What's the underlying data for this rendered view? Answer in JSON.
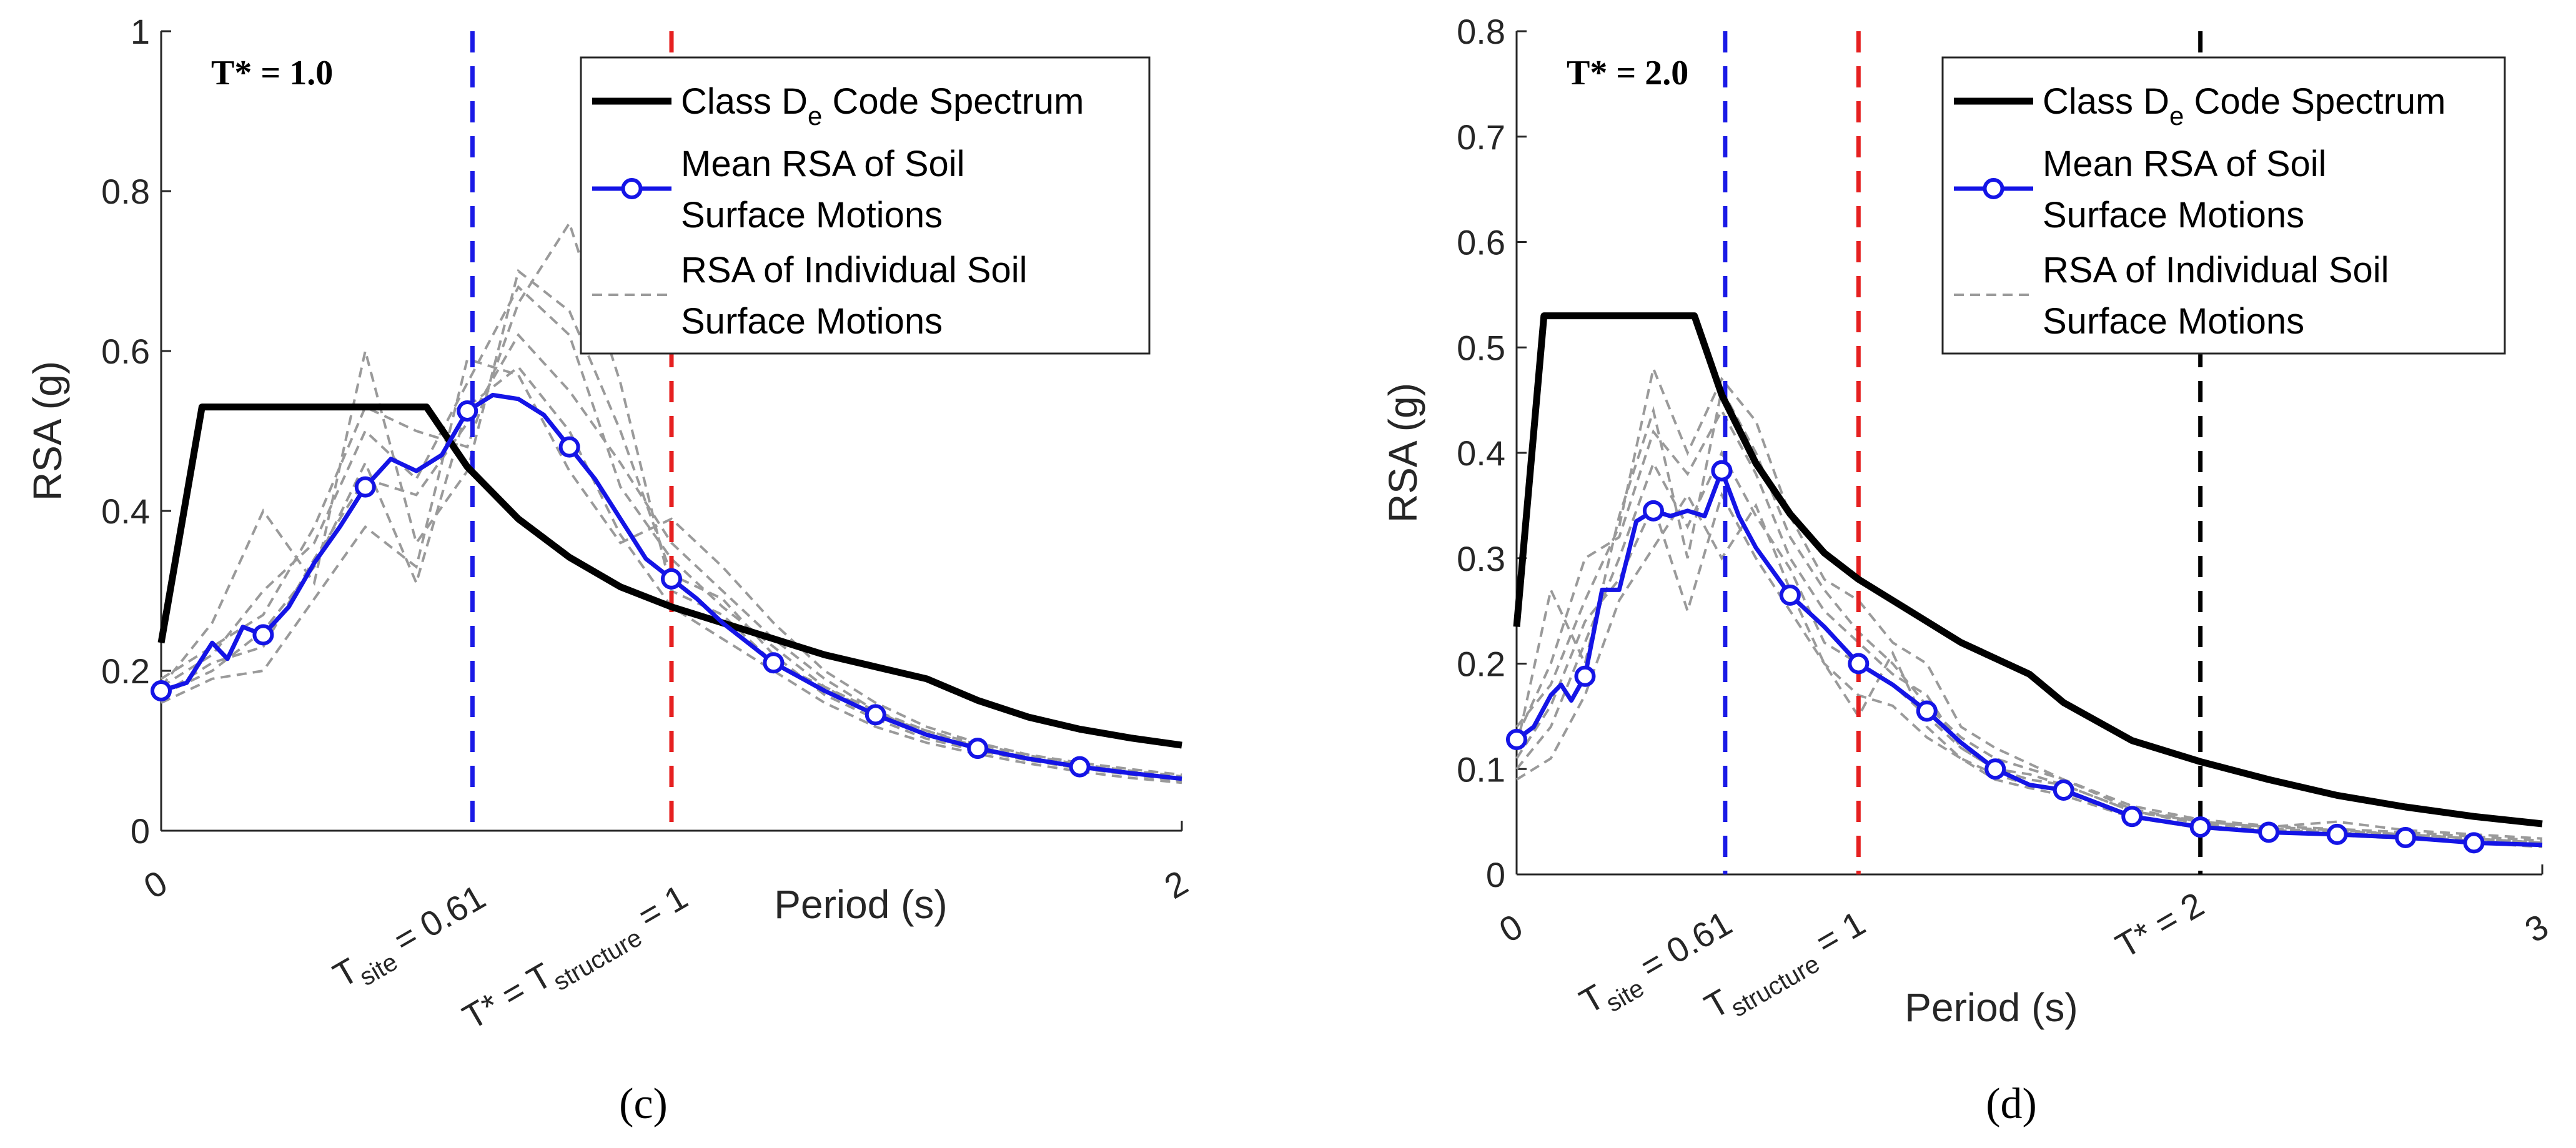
{
  "colors": {
    "code": "#000000",
    "mean": "#1414e6",
    "individual": "#9a9a9a",
    "site_line": "#1a1ae6",
    "structure_line": "#e62020",
    "tstar_line": "#000000"
  },
  "legend": {
    "code_main": "Class D",
    "code_sub": "e",
    "code_tail": " Code Spectrum",
    "mean_line1": "Mean RSA of Soil",
    "mean_line2": "Surface Motions",
    "indiv_line1": "RSA of Individual Soil",
    "indiv_line2": "Surface Motions"
  },
  "chart_data": [
    {
      "type": "line",
      "panel_label": "(c)",
      "annotation": "T* = 1.0",
      "xlabel": "Period (s)",
      "ylabel": "RSA (g)",
      "xlim": [
        0,
        2
      ],
      "ylim": [
        0,
        1
      ],
      "x_ticks": [
        0,
        2
      ],
      "y_ticks": [
        0,
        0.2,
        0.4,
        0.6,
        0.8,
        1
      ],
      "y_tick_labels": [
        "0",
        "0.2",
        "0.4",
        "0.6",
        "0.8",
        "1"
      ],
      "vlines": [
        {
          "x": 0.61,
          "color_key": "site_line",
          "label_parts": [
            "T",
            "site",
            " = 0.61"
          ]
        },
        {
          "x": 1.0,
          "color_key": "structure_line",
          "label_parts": [
            "T* = T",
            "structure",
            " = 1"
          ]
        }
      ],
      "series": [
        {
          "name": "Class De Code Spectrum",
          "x": [
            0,
            0.08,
            0.2,
            0.3,
            0.4,
            0.52,
            0.6,
            0.7,
            0.8,
            0.9,
            1.0,
            1.1,
            1.2,
            1.3,
            1.4,
            1.5,
            1.6,
            1.7,
            1.8,
            1.9,
            2.0
          ],
          "y": [
            0.235,
            0.53,
            0.53,
            0.53,
            0.53,
            0.53,
            0.455,
            0.39,
            0.342,
            0.305,
            0.28,
            0.26,
            0.24,
            0.22,
            0.205,
            0.19,
            0.163,
            0.142,
            0.127,
            0.116,
            0.107
          ]
        },
        {
          "name": "Mean RSA of Soil Surface Motions",
          "x": [
            0,
            0.05,
            0.1,
            0.13,
            0.16,
            0.2,
            0.25,
            0.3,
            0.35,
            0.4,
            0.45,
            0.5,
            0.55,
            0.6,
            0.65,
            0.7,
            0.75,
            0.8,
            0.85,
            0.9,
            0.95,
            1.0,
            1.05,
            1.1,
            1.2,
            1.3,
            1.4,
            1.5,
            1.6,
            1.7,
            1.8,
            1.9,
            2.0
          ],
          "y": [
            0.175,
            0.185,
            0.235,
            0.215,
            0.255,
            0.245,
            0.28,
            0.335,
            0.38,
            0.43,
            0.465,
            0.45,
            0.47,
            0.525,
            0.545,
            0.54,
            0.52,
            0.48,
            0.44,
            0.39,
            0.34,
            0.315,
            0.29,
            0.26,
            0.21,
            0.175,
            0.145,
            0.12,
            0.103,
            0.09,
            0.08,
            0.072,
            0.065
          ]
        },
        {
          "name": "RSA of Individual Soil Surface Motions",
          "group": true,
          "base_x": [
            0,
            0.1,
            0.2,
            0.3,
            0.4,
            0.5,
            0.6,
            0.7,
            0.8,
            0.9,
            1.0,
            1.1,
            1.2,
            1.3,
            1.4,
            1.5,
            1.6,
            1.7,
            1.8,
            1.9,
            2.0
          ],
          "members": [
            [
              0.17,
              0.21,
              0.23,
              0.34,
              0.44,
              0.42,
              0.51,
              0.62,
              0.55,
              0.46,
              0.36,
              0.3,
              0.24,
              0.19,
              0.15,
              0.12,
              0.105,
              0.09,
              0.08,
              0.072,
              0.065
            ],
            [
              0.18,
              0.26,
              0.4,
              0.31,
              0.6,
              0.36,
              0.45,
              0.7,
              0.65,
              0.5,
              0.32,
              0.29,
              0.22,
              0.17,
              0.14,
              0.115,
              0.1,
              0.088,
              0.078,
              0.07,
              0.062
            ],
            [
              0.16,
              0.19,
              0.2,
              0.29,
              0.38,
              0.33,
              0.59,
              0.57,
              0.45,
              0.36,
              0.39,
              0.33,
              0.26,
              0.2,
              0.16,
              0.13,
              0.11,
              0.095,
              0.085,
              0.077,
              0.07
            ],
            [
              0.19,
              0.23,
              0.27,
              0.38,
              0.53,
              0.5,
              0.48,
              0.66,
              0.76,
              0.56,
              0.3,
              0.27,
              0.21,
              0.18,
              0.145,
              0.125,
              0.108,
              0.094,
              0.083,
              0.075,
              0.068
            ],
            [
              0.17,
              0.2,
              0.25,
              0.33,
              0.46,
              0.31,
              0.53,
              0.58,
              0.5,
              0.37,
              0.28,
              0.24,
              0.2,
              0.16,
              0.13,
              0.11,
              0.096,
              0.084,
              0.074,
              0.066,
              0.06
            ],
            [
              0.18,
              0.22,
              0.3,
              0.36,
              0.5,
              0.44,
              0.56,
              0.68,
              0.62,
              0.43,
              0.34,
              0.28,
              0.23,
              0.18,
              0.15,
              0.125,
              0.105,
              0.09,
              0.08,
              0.072,
              0.064
            ]
          ]
        }
      ]
    },
    {
      "type": "line",
      "panel_label": "(d)",
      "annotation": "T* = 2.0",
      "xlabel": "Period (s)",
      "ylabel": "RSA (g)",
      "xlim": [
        0,
        3
      ],
      "ylim": [
        0,
        0.8
      ],
      "x_ticks": [
        0,
        3
      ],
      "y_ticks": [
        0,
        0.1,
        0.2,
        0.3,
        0.4,
        0.5,
        0.6,
        0.7,
        0.8
      ],
      "y_tick_labels": [
        "0",
        "0.1",
        "0.2",
        "0.3",
        "0.4",
        "0.5",
        "0.6",
        "0.7",
        "0.8"
      ],
      "vlines": [
        {
          "x": 0.61,
          "color_key": "site_line",
          "label_parts": [
            "T",
            "site",
            " = 0.61"
          ]
        },
        {
          "x": 1.0,
          "color_key": "structure_line",
          "label_parts": [
            "T",
            "structure",
            " = 1"
          ]
        },
        {
          "x": 2.0,
          "color_key": "tstar_line",
          "label_parts": [
            "T* = 2",
            "",
            ""
          ]
        }
      ],
      "series": [
        {
          "name": "Class De Code Spectrum",
          "x": [
            0,
            0.08,
            0.2,
            0.3,
            0.4,
            0.52,
            0.6,
            0.7,
            0.8,
            0.9,
            1.0,
            1.1,
            1.2,
            1.3,
            1.4,
            1.5,
            1.6,
            1.8,
            2.0,
            2.2,
            2.4,
            2.6,
            2.8,
            3.0
          ],
          "y": [
            0.235,
            0.53,
            0.53,
            0.53,
            0.53,
            0.53,
            0.455,
            0.39,
            0.342,
            0.305,
            0.28,
            0.26,
            0.24,
            0.22,
            0.205,
            0.19,
            0.163,
            0.127,
            0.107,
            0.09,
            0.075,
            0.064,
            0.055,
            0.048
          ]
        },
        {
          "name": "Mean RSA of Soil Surface Motions",
          "x": [
            0,
            0.05,
            0.1,
            0.13,
            0.16,
            0.2,
            0.25,
            0.3,
            0.35,
            0.4,
            0.45,
            0.5,
            0.55,
            0.6,
            0.65,
            0.7,
            0.8,
            0.9,
            1.0,
            1.1,
            1.2,
            1.3,
            1.4,
            1.5,
            1.6,
            1.8,
            2.0,
            2.2,
            2.4,
            2.6,
            2.8,
            3.0
          ],
          "y": [
            0.128,
            0.14,
            0.17,
            0.18,
            0.165,
            0.188,
            0.27,
            0.27,
            0.335,
            0.345,
            0.34,
            0.345,
            0.34,
            0.383,
            0.34,
            0.31,
            0.265,
            0.235,
            0.2,
            0.18,
            0.155,
            0.125,
            0.1,
            0.085,
            0.08,
            0.055,
            0.045,
            0.04,
            0.038,
            0.035,
            0.03,
            0.028
          ]
        },
        {
          "name": "RSA of Individual Soil Surface Motions",
          "group": true,
          "base_x": [
            0,
            0.1,
            0.2,
            0.3,
            0.4,
            0.5,
            0.6,
            0.7,
            0.8,
            0.9,
            1.0,
            1.1,
            1.2,
            1.3,
            1.4,
            1.5,
            1.6,
            1.8,
            2.0,
            2.2,
            2.4,
            2.6,
            2.8,
            3.0
          ],
          "members": [
            [
              0.1,
              0.14,
              0.22,
              0.3,
              0.39,
              0.33,
              0.4,
              0.34,
              0.29,
              0.22,
              0.2,
              0.18,
              0.15,
              0.12,
              0.1,
              0.09,
              0.085,
              0.06,
              0.05,
              0.045,
              0.042,
              0.038,
              0.034,
              0.03
            ],
            [
              0.12,
              0.27,
              0.2,
              0.34,
              0.44,
              0.3,
              0.46,
              0.4,
              0.32,
              0.27,
              0.23,
              0.2,
              0.16,
              0.13,
              0.11,
              0.1,
              0.09,
              0.065,
              0.052,
              0.046,
              0.043,
              0.04,
              0.036,
              0.032
            ],
            [
              0.09,
              0.11,
              0.17,
              0.26,
              0.31,
              0.36,
              0.3,
              0.35,
              0.27,
              0.2,
              0.15,
              0.21,
              0.14,
              0.11,
              0.095,
              0.085,
              0.078,
              0.056,
              0.046,
              0.042,
              0.04,
              0.036,
              0.032,
              0.028
            ],
            [
              0.14,
              0.18,
              0.26,
              0.33,
              0.48,
              0.4,
              0.47,
              0.43,
              0.34,
              0.28,
              0.26,
              0.22,
              0.2,
              0.14,
              0.12,
              0.105,
              0.09,
              0.062,
              0.05,
              0.045,
              0.05,
              0.042,
              0.038,
              0.034
            ],
            [
              0.11,
              0.16,
              0.24,
              0.28,
              0.35,
              0.25,
              0.36,
              0.3,
              0.25,
              0.2,
              0.17,
              0.16,
              0.13,
              0.11,
              0.09,
              0.082,
              0.075,
              0.054,
              0.044,
              0.04,
              0.037,
              0.034,
              0.03,
              0.026
            ],
            [
              0.13,
              0.2,
              0.3,
              0.32,
              0.42,
              0.38,
              0.44,
              0.38,
              0.3,
              0.25,
              0.22,
              0.19,
              0.17,
              0.12,
              0.1,
              0.095,
              0.085,
              0.06,
              0.048,
              0.043,
              0.041,
              0.038,
              0.034,
              0.03
            ]
          ]
        }
      ]
    }
  ]
}
